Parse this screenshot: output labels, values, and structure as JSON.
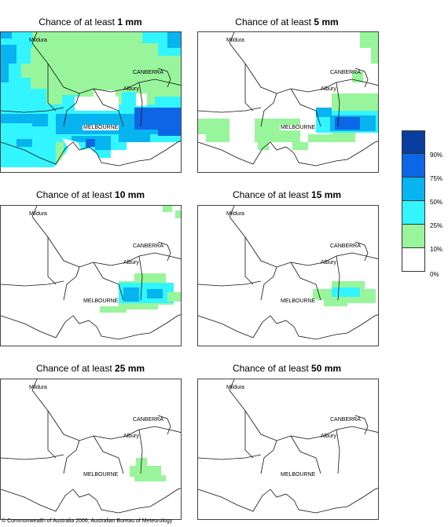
{
  "panels": [
    {
      "prefix": "Chance of at least ",
      "amount": "1 mm"
    },
    {
      "prefix": "Chance of at least ",
      "amount": "5 mm"
    },
    {
      "prefix": "Chance of at least ",
      "amount": "10 mm"
    },
    {
      "prefix": "Chance of at least ",
      "amount": "15 mm"
    },
    {
      "prefix": "Chance of at least ",
      "amount": "25 mm"
    },
    {
      "prefix": "Chance of at least ",
      "amount": "50 mm"
    }
  ],
  "places": {
    "mildura": "Mildura",
    "canberra": "CANBERRA",
    "albury": "Albury",
    "melbourne": "MELBOURNE"
  },
  "legend": {
    "labels": [
      "90%",
      "75%",
      "50%",
      "25%",
      "10%",
      "0%"
    ],
    "colors": [
      "#0a3e9e",
      "#0d66e6",
      "#07b4f0",
      "#33f5ff",
      "#99f59b",
      "#ffffff"
    ]
  },
  "copyright": "© Commonwealth of Australia 2006, Australian Bureau of Meteorology"
}
